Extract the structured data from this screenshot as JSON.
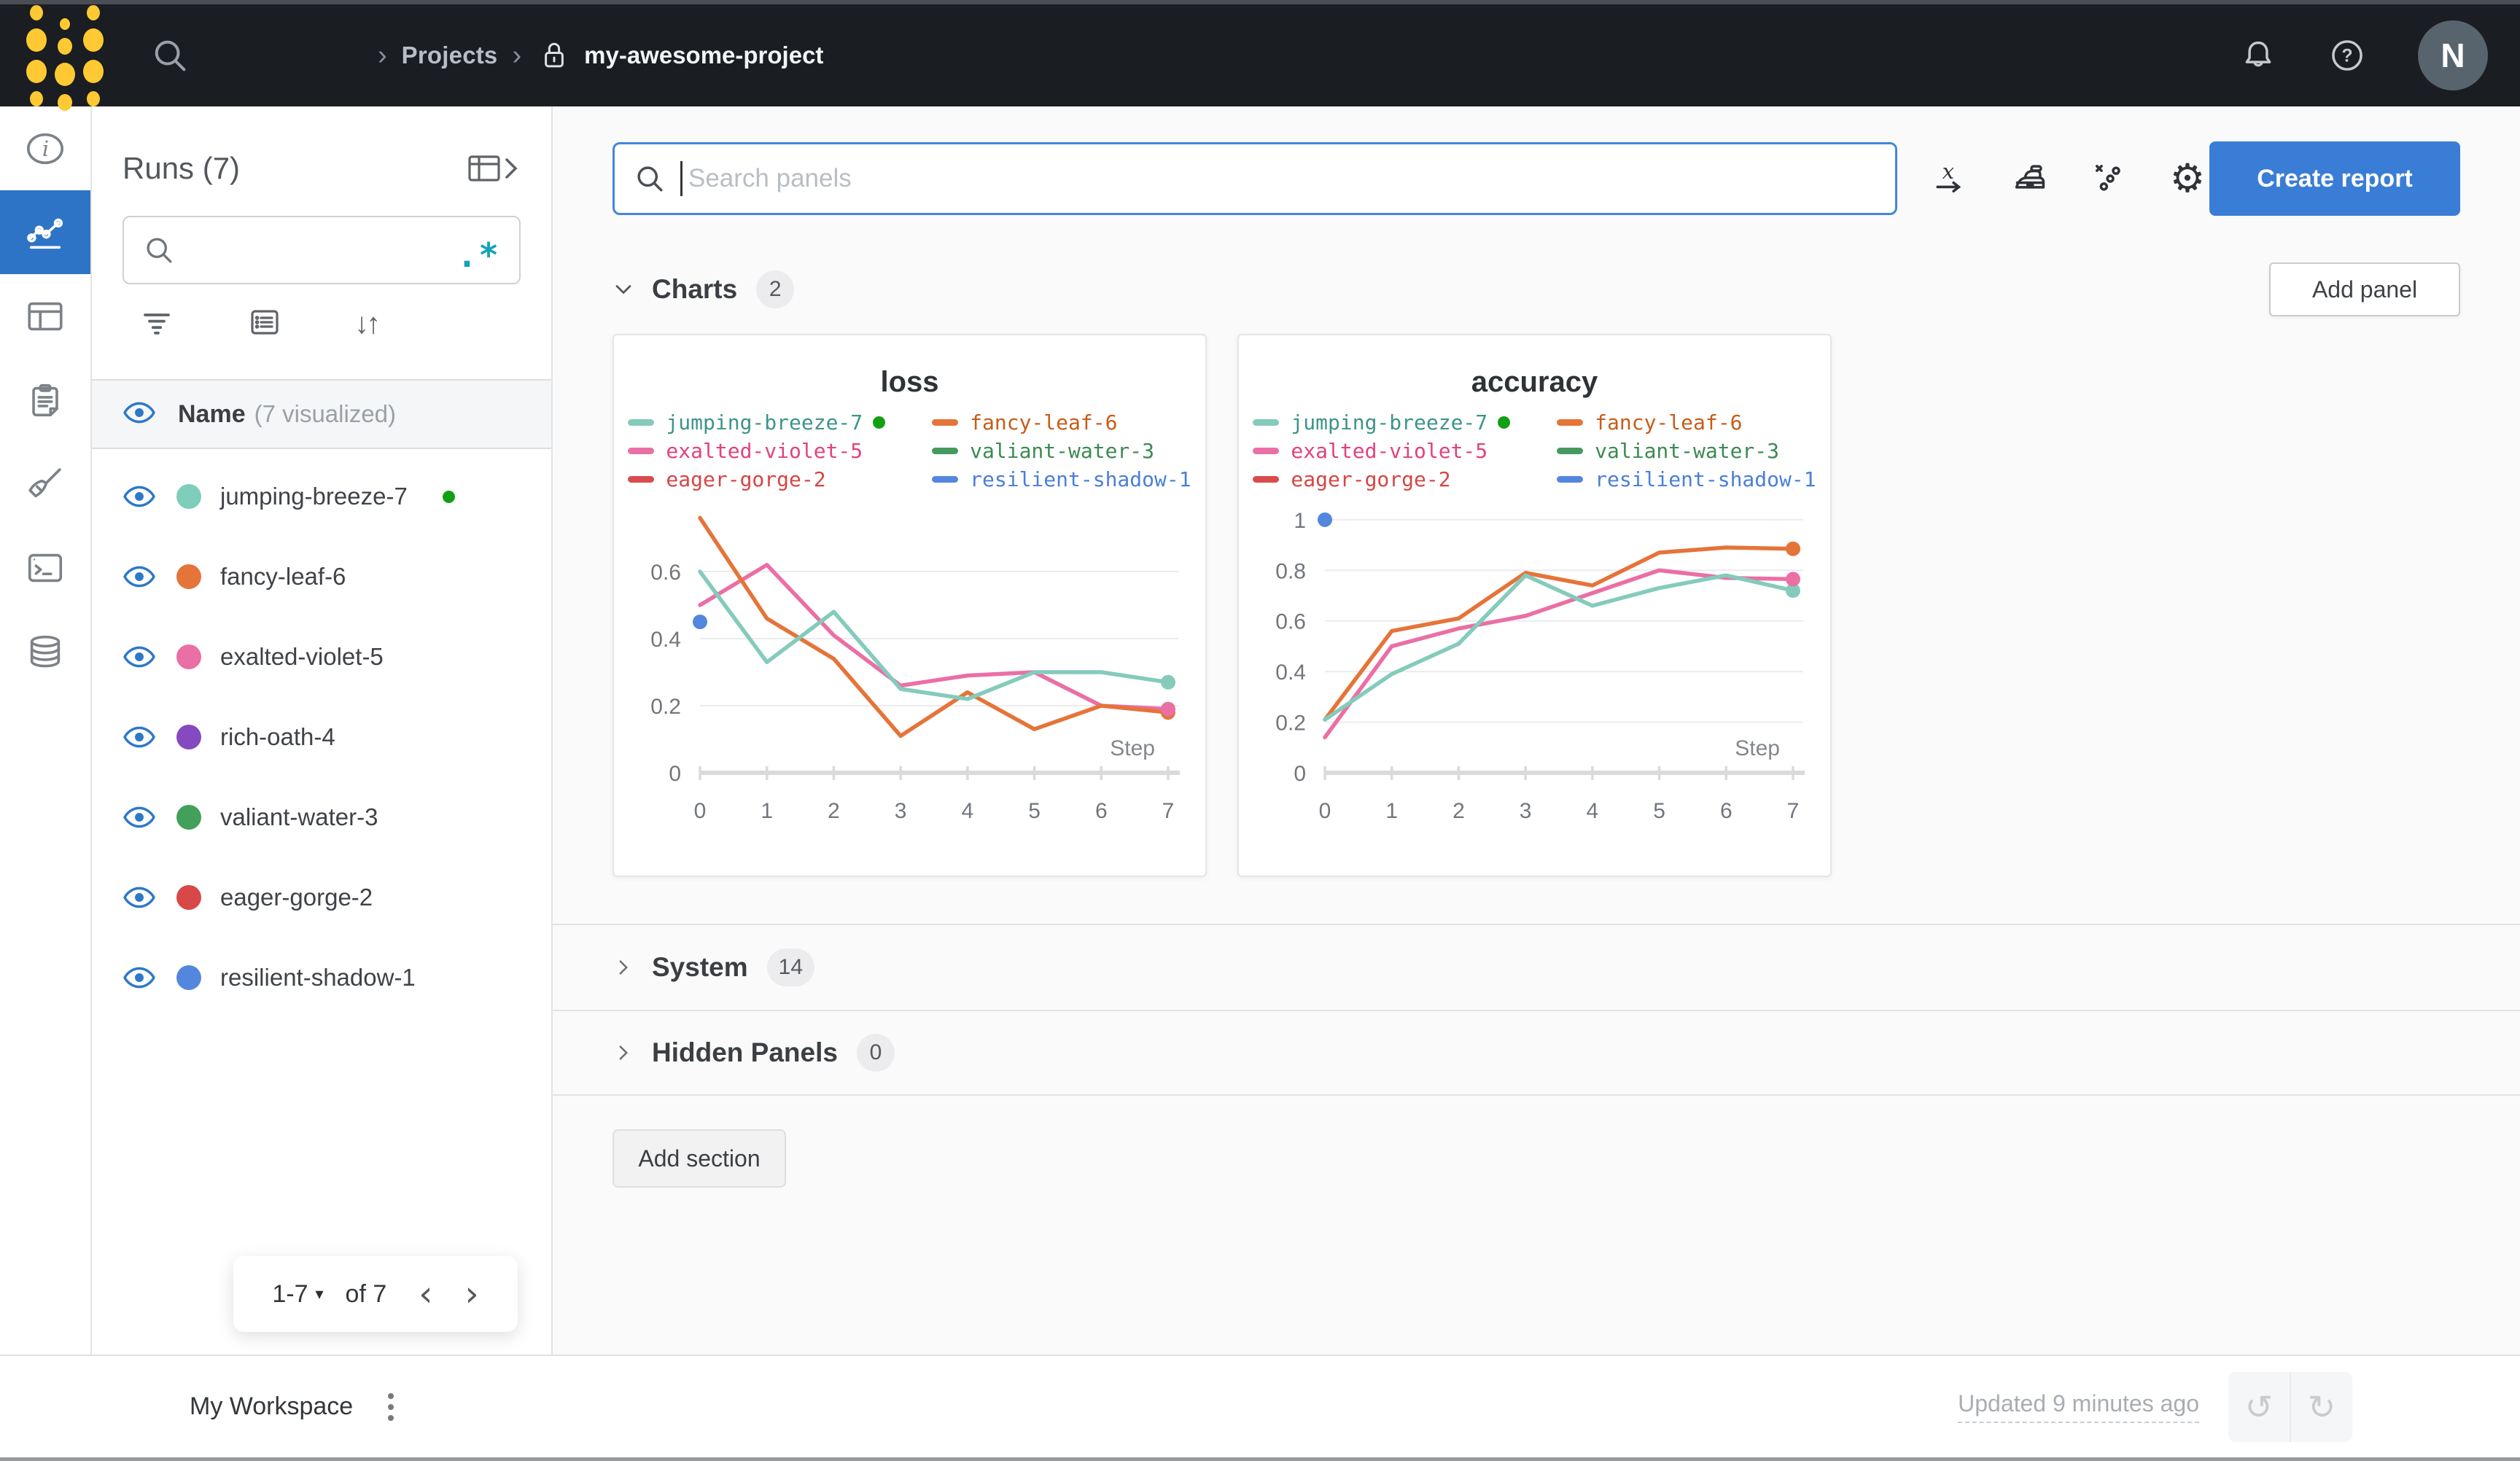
{
  "topbar": {
    "breadcrumb": {
      "sep": "›",
      "items": [
        {
          "label": "Projects"
        },
        {
          "label": "my-awesome-project",
          "locked": true
        }
      ]
    },
    "avatar": "N"
  },
  "rail": {
    "active_index": 1,
    "active_color": "#2e74c6",
    "items": [
      {
        "name": "overview",
        "icon": "info"
      },
      {
        "name": "workspace",
        "icon": "panels"
      },
      {
        "name": "runs-table",
        "icon": "table"
      },
      {
        "name": "reports",
        "icon": "clipboard"
      },
      {
        "name": "sweeps",
        "icon": "broom"
      },
      {
        "name": "logs",
        "icon": "terminal"
      },
      {
        "name": "artifacts",
        "icon": "database"
      }
    ]
  },
  "runs_panel": {
    "title": "Runs (7)",
    "header": {
      "name": "Name",
      "suffix": "(7 visualized)"
    },
    "runs": [
      {
        "name": "jumping-breeze-7",
        "color": "#7fcdbb",
        "live": true
      },
      {
        "name": "fancy-leaf-6",
        "color": "#e57439"
      },
      {
        "name": "exalted-violet-5",
        "color": "#ea6fa5"
      },
      {
        "name": "rich-oath-4",
        "color": "#8549c0"
      },
      {
        "name": "valiant-water-3",
        "color": "#42a05a"
      },
      {
        "name": "eager-gorge-2",
        "color": "#d94848"
      },
      {
        "name": "resilient-shadow-1",
        "color": "#5387dd"
      }
    ],
    "pagination": {
      "range": "1-7",
      "of": "of 7"
    }
  },
  "toolbar": {
    "search_placeholder": "Search panels",
    "create_report": "Create report"
  },
  "sections": {
    "charts": {
      "label": "Charts",
      "count": "2",
      "add_panel": "Add panel"
    },
    "system": {
      "label": "System",
      "count": "14"
    },
    "hidden": {
      "label": "Hidden Panels",
      "count": "0"
    },
    "add_section": "Add section"
  },
  "footer": {
    "workspace": "My Workspace",
    "updated": "Updated 9 minutes ago"
  },
  "icons": {
    "dropdown_glyph": "▾",
    "prev_glyph": "‹",
    "next_glyph": "›",
    "sort_glyphs": "↓↑",
    "gear_glyph": "⚙",
    "undo_glyph": "↺",
    "redo_glyph": "↻",
    "regex_glyph": ".*",
    "live_color": "#12a012"
  },
  "chart_data": [
    {
      "type": "line",
      "title": "loss",
      "xlabel": "Step",
      "x": [
        0,
        1,
        2,
        3,
        4,
        5,
        6,
        7
      ],
      "ylim": [
        0,
        0.8
      ],
      "yticks": [
        0,
        0.2,
        0.4,
        0.6
      ],
      "grid": "horizontal",
      "legend_position": "top",
      "series": [
        {
          "name": "jumping-breeze-7",
          "color": "#84cbbc",
          "text_color": "#3d9489",
          "live": true,
          "end_dot": true,
          "values": [
            0.6,
            0.33,
            0.48,
            0.25,
            0.22,
            0.3,
            0.3,
            0.27
          ]
        },
        {
          "name": "fancy-leaf-6",
          "color": "#e57439",
          "text_color": "#c75c19",
          "end_dot": true,
          "values": [
            0.76,
            0.46,
            0.34,
            0.11,
            0.24,
            0.13,
            0.2,
            0.18
          ]
        },
        {
          "name": "exalted-violet-5",
          "color": "#ea6fa5",
          "text_color": "#e2417f",
          "end_dot": true,
          "values": [
            0.5,
            0.62,
            0.41,
            0.26,
            0.29,
            0.3,
            0.2,
            0.19
          ]
        },
        {
          "name": "valiant-water-3",
          "color": "#479a5f",
          "text_color": "#3c8a52",
          "values": []
        },
        {
          "name": "eager-gorge-2",
          "color": "#d84c4c",
          "text_color": "#d64545",
          "values": []
        },
        {
          "name": "resilient-shadow-1",
          "color": "#5387dd",
          "text_color": "#4a7fd8",
          "values": [
            0.45
          ]
        }
      ]
    },
    {
      "type": "line",
      "title": "accuracy",
      "xlabel": "Step",
      "x": [
        0,
        1,
        2,
        3,
        4,
        5,
        6,
        7
      ],
      "ylim": [
        0,
        1.06
      ],
      "yticks": [
        0,
        0.2,
        0.4,
        0.6,
        0.8,
        1
      ],
      "grid": "horizontal",
      "legend_position": "top",
      "series": [
        {
          "name": "jumping-breeze-7",
          "color": "#84cbbc",
          "text_color": "#3d9489",
          "live": true,
          "end_dot": true,
          "values": [
            0.21,
            0.39,
            0.51,
            0.78,
            0.66,
            0.73,
            0.78,
            0.72
          ]
        },
        {
          "name": "fancy-leaf-6",
          "color": "#e57439",
          "text_color": "#c75c19",
          "end_dot": true,
          "values": [
            0.21,
            0.56,
            0.61,
            0.79,
            0.74,
            0.87,
            0.89,
            0.885
          ]
        },
        {
          "name": "exalted-violet-5",
          "color": "#ea6fa5",
          "text_color": "#e2417f",
          "end_dot": true,
          "values": [
            0.14,
            0.5,
            0.57,
            0.62,
            0.71,
            0.8,
            0.77,
            0.765
          ]
        },
        {
          "name": "valiant-water-3",
          "color": "#479a5f",
          "text_color": "#3c8a52",
          "values": []
        },
        {
          "name": "eager-gorge-2",
          "color": "#d84c4c",
          "text_color": "#d64545",
          "values": []
        },
        {
          "name": "resilient-shadow-1",
          "color": "#5387dd",
          "text_color": "#4a7fd8",
          "values": [
            1.0
          ]
        }
      ]
    }
  ]
}
